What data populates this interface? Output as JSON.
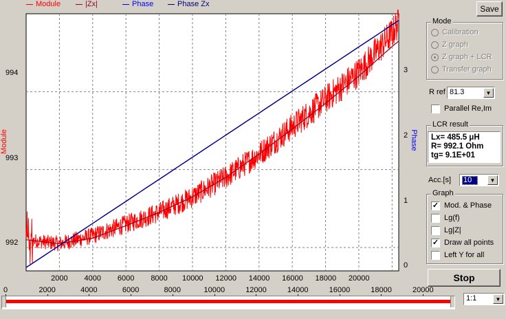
{
  "legend": [
    {
      "label": "Module",
      "color": "#ff0000"
    },
    {
      "label": "|Zx|",
      "color": "#a00020"
    },
    {
      "label": "Phase",
      "color": "#0000ff"
    },
    {
      "label": "Phase Zx",
      "color": "#000080"
    }
  ],
  "colors": {
    "module": "#ff0000",
    "module_fit": "#a00020",
    "phase": "#0000ff",
    "phase_fit": "#000080",
    "slider": "#ff0000"
  },
  "plot": {
    "left_axis_label": "Module",
    "right_axis_label": "Phase",
    "left_ticks": [
      "992",
      "993",
      "994"
    ],
    "right_ticks": [
      "0",
      "1",
      "2",
      "3"
    ],
    "x_ticks": [
      "2000",
      "4000",
      "6000",
      "8000",
      "10000",
      "12000",
      "14000",
      "16000",
      "18000",
      "20000"
    ]
  },
  "chart_data": {
    "type": "line",
    "x_range": [
      0,
      22400
    ],
    "left_ylim": [
      991.7,
      995.0
    ],
    "right_ylim": [
      -0.05,
      3.8
    ],
    "series": [
      {
        "name": "Module",
        "axis": "left",
        "x": [
          0,
          2000,
          4000,
          6000,
          8000,
          10000,
          12000,
          14000,
          16000,
          18000,
          20000,
          22000,
          22400
        ],
        "values": [
          992.1,
          992.05,
          992.15,
          992.3,
          992.45,
          992.65,
          992.9,
          993.2,
          993.55,
          993.9,
          994.25,
          994.75,
          994.9
        ]
      },
      {
        "name": "|Zx|",
        "axis": "left",
        "x": [
          0,
          2000,
          4000,
          6000,
          8000,
          10000,
          12000,
          14000,
          16000,
          18000,
          20000,
          22000,
          22400
        ],
        "values": [
          992.1,
          992.05,
          992.12,
          992.28,
          992.45,
          992.65,
          992.9,
          993.2,
          993.52,
          993.85,
          994.2,
          994.58,
          994.65
        ]
      },
      {
        "name": "Phase",
        "axis": "left_right",
        "x": [
          0,
          22400
        ],
        "values": [
          0.0,
          3.7
        ]
      },
      {
        "name": "Phase Zx",
        "axis": "right",
        "x": [
          0,
          22400
        ],
        "values": [
          0.0,
          3.7
        ]
      }
    ]
  },
  "slider_scale": {
    "ticks": [
      "0",
      "2000",
      "4000",
      "6000",
      "8000",
      "10000",
      "12000",
      "14000",
      "16000",
      "18000",
      "20000"
    ]
  },
  "buttons": {
    "save": "Save",
    "stop": "Stop"
  },
  "mode": {
    "title": "Mode",
    "options": [
      "Calibration",
      "Z graph",
      "Z graph + LCR",
      "Transfer graph"
    ],
    "selected": "Z graph + LCR"
  },
  "rref": {
    "label": "R ref",
    "value": "81.3"
  },
  "parallel": {
    "label": "Parallel Re,Im",
    "checked": false
  },
  "lcr": {
    "title": "LCR result",
    "lines": [
      "Lx= 485.5 μH",
      "R= 992.1 Ohm",
      "tg= 9.1E+01"
    ]
  },
  "acc": {
    "label": "Acc.[s]",
    "value": "10"
  },
  "graph": {
    "title": "Graph",
    "options": [
      {
        "label": "Mod. & Phase",
        "checked": true
      },
      {
        "label": "Lg(f)",
        "checked": false
      },
      {
        "label": "Lg|Z|",
        "checked": false
      },
      {
        "label": "Draw all points",
        "checked": true
      },
      {
        "label": "Left Y for all",
        "checked": false
      }
    ]
  },
  "zoom": {
    "value": "1:1"
  }
}
